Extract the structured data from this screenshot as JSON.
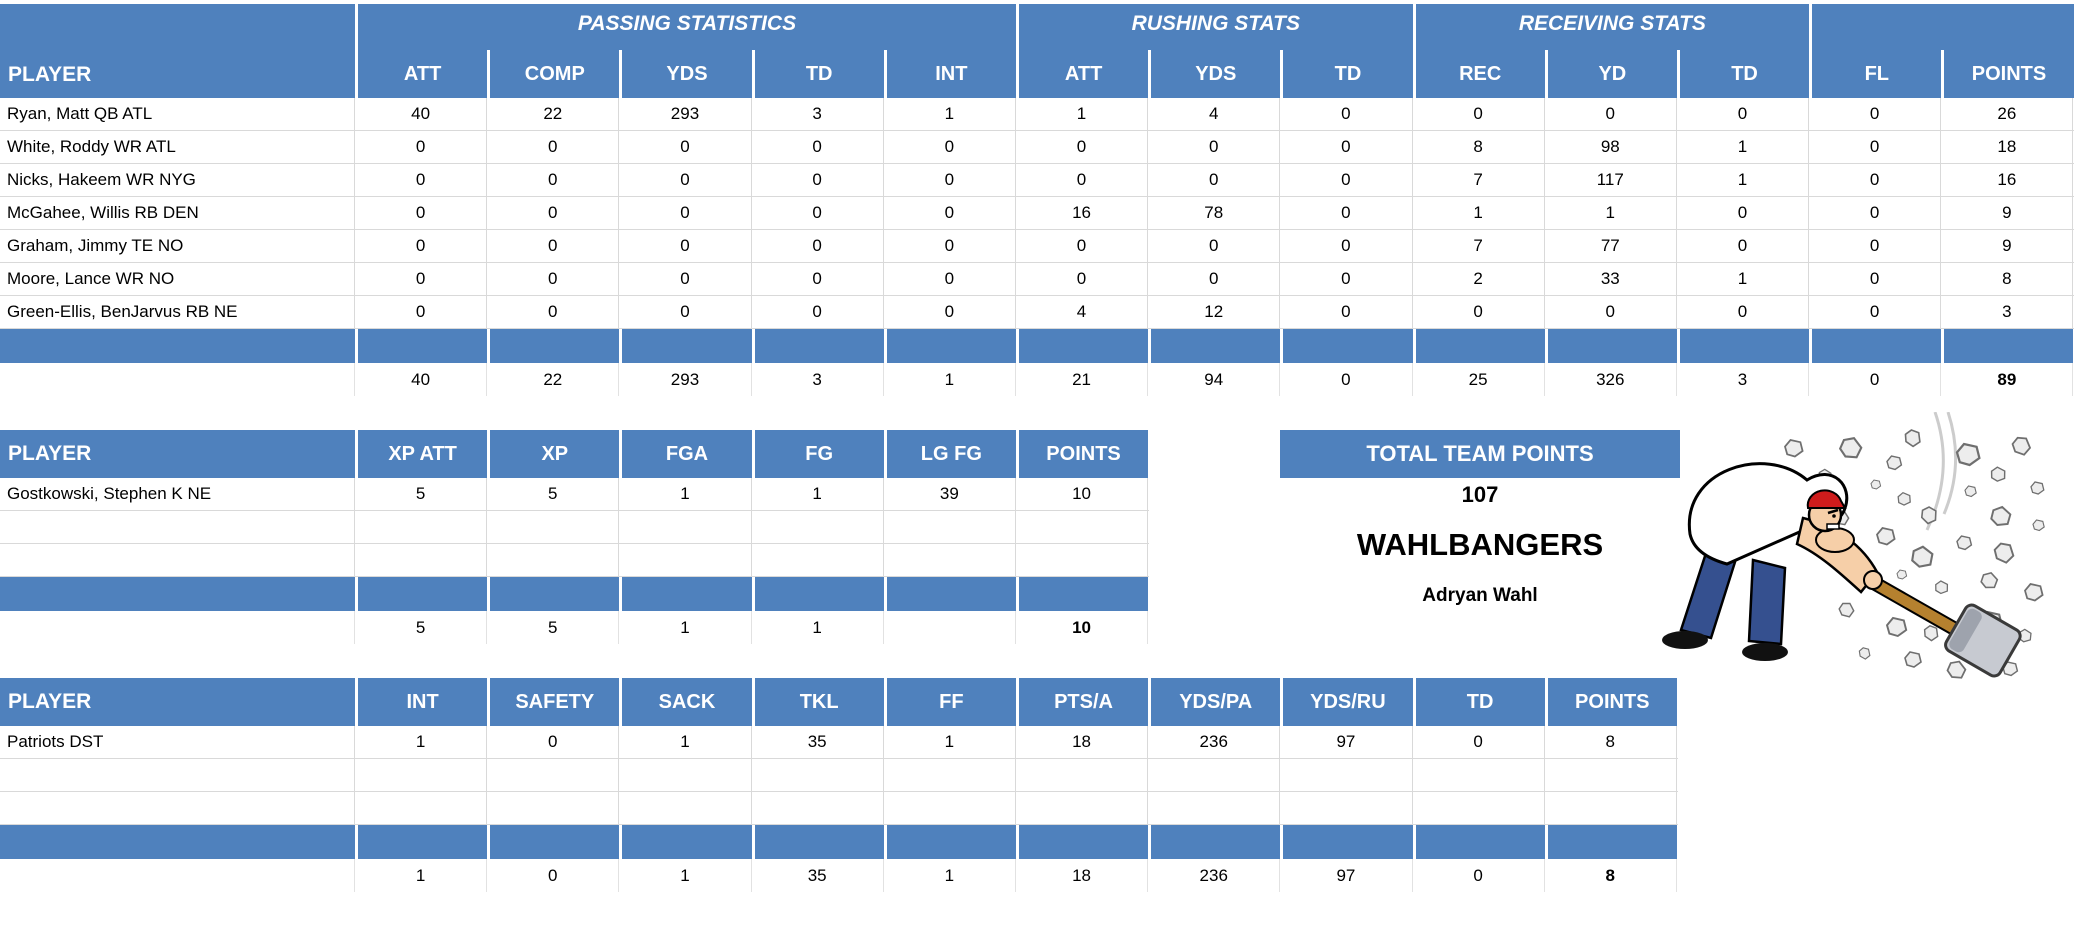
{
  "colors": {
    "header_blue": "#4f81bd",
    "gridline": "#d9d9d9",
    "header_text": "#ffffff",
    "body_text": "#000000"
  },
  "offense": {
    "player_header": "PLAYER",
    "groups": [
      {
        "label": "PASSING STATISTICS",
        "columns": [
          "ATT",
          "COMP",
          "YDS",
          "TD",
          "INT"
        ]
      },
      {
        "label": "RUSHING STATS",
        "columns": [
          "ATT",
          "YDS",
          "TD"
        ]
      },
      {
        "label": "RECEIVING STATS",
        "columns": [
          "REC",
          "YD",
          "TD"
        ]
      },
      {
        "label": "",
        "columns": [
          "FL",
          "POINTS"
        ]
      }
    ],
    "rows": [
      {
        "player": "Ryan, Matt QB ATL",
        "values": [
          "40",
          "22",
          "293",
          "3",
          "1",
          "1",
          "4",
          "0",
          "0",
          "0",
          "0",
          "0",
          "26"
        ]
      },
      {
        "player": "White, Roddy WR ATL",
        "values": [
          "0",
          "0",
          "0",
          "0",
          "0",
          "0",
          "0",
          "0",
          "8",
          "98",
          "1",
          "0",
          "18"
        ]
      },
      {
        "player": "Nicks, Hakeem WR NYG",
        "values": [
          "0",
          "0",
          "0",
          "0",
          "0",
          "0",
          "0",
          "0",
          "7",
          "117",
          "1",
          "0",
          "16"
        ]
      },
      {
        "player": "McGahee, Willis RB DEN",
        "values": [
          "0",
          "0",
          "0",
          "0",
          "0",
          "16",
          "78",
          "0",
          "1",
          "1",
          "0",
          "0",
          "9"
        ]
      },
      {
        "player": "Graham, Jimmy TE NO",
        "values": [
          "0",
          "0",
          "0",
          "0",
          "0",
          "0",
          "0",
          "0",
          "7",
          "77",
          "0",
          "0",
          "9"
        ]
      },
      {
        "player": "Moore, Lance WR NO",
        "values": [
          "0",
          "0",
          "0",
          "0",
          "0",
          "0",
          "0",
          "0",
          "2",
          "33",
          "1",
          "0",
          "8"
        ]
      },
      {
        "player": "Green-Ellis, BenJarvus RB NE",
        "values": [
          "0",
          "0",
          "0",
          "0",
          "0",
          "4",
          "12",
          "0",
          "0",
          "0",
          "0",
          "0",
          "3"
        ]
      }
    ],
    "totals": [
      "40",
      "22",
      "293",
      "3",
      "1",
      "21",
      "94",
      "0",
      "25",
      "326",
      "3",
      "0",
      "89"
    ]
  },
  "kicker": {
    "player_header": "PLAYER",
    "columns": [
      "XP ATT",
      "XP",
      "FGA",
      "FG",
      "LG FG",
      "POINTS"
    ],
    "rows": [
      {
        "player": "Gostkowski, Stephen K NE",
        "values": [
          "5",
          "5",
          "1",
          "1",
          "39",
          "10"
        ]
      }
    ],
    "totals": [
      "5",
      "5",
      "1",
      "1",
      "",
      "10"
    ]
  },
  "defense": {
    "player_header": "PLAYER",
    "columns": [
      "INT",
      "SAFETY",
      "SACK",
      "TKL",
      "FF",
      "PTS/A",
      "YDS/PA",
      "YDS/RU",
      "TD",
      "POINTS"
    ],
    "rows": [
      {
        "player": "Patriots DST",
        "values": [
          "1",
          "0",
          "1",
          "35",
          "1",
          "18",
          "236",
          "97",
          "0",
          "8"
        ]
      }
    ],
    "totals": [
      "1",
      "0",
      "1",
      "35",
      "1",
      "18",
      "236",
      "97",
      "0",
      "8"
    ]
  },
  "team_summary": {
    "header": "TOTAL TEAM POINTS",
    "total_points": "107",
    "team_name": "WAHLBANGERS",
    "owner": "Adryan Wahl"
  },
  "mascot": {
    "description": "cartoon-man-smashing-rocks-with-sledgehammer"
  }
}
